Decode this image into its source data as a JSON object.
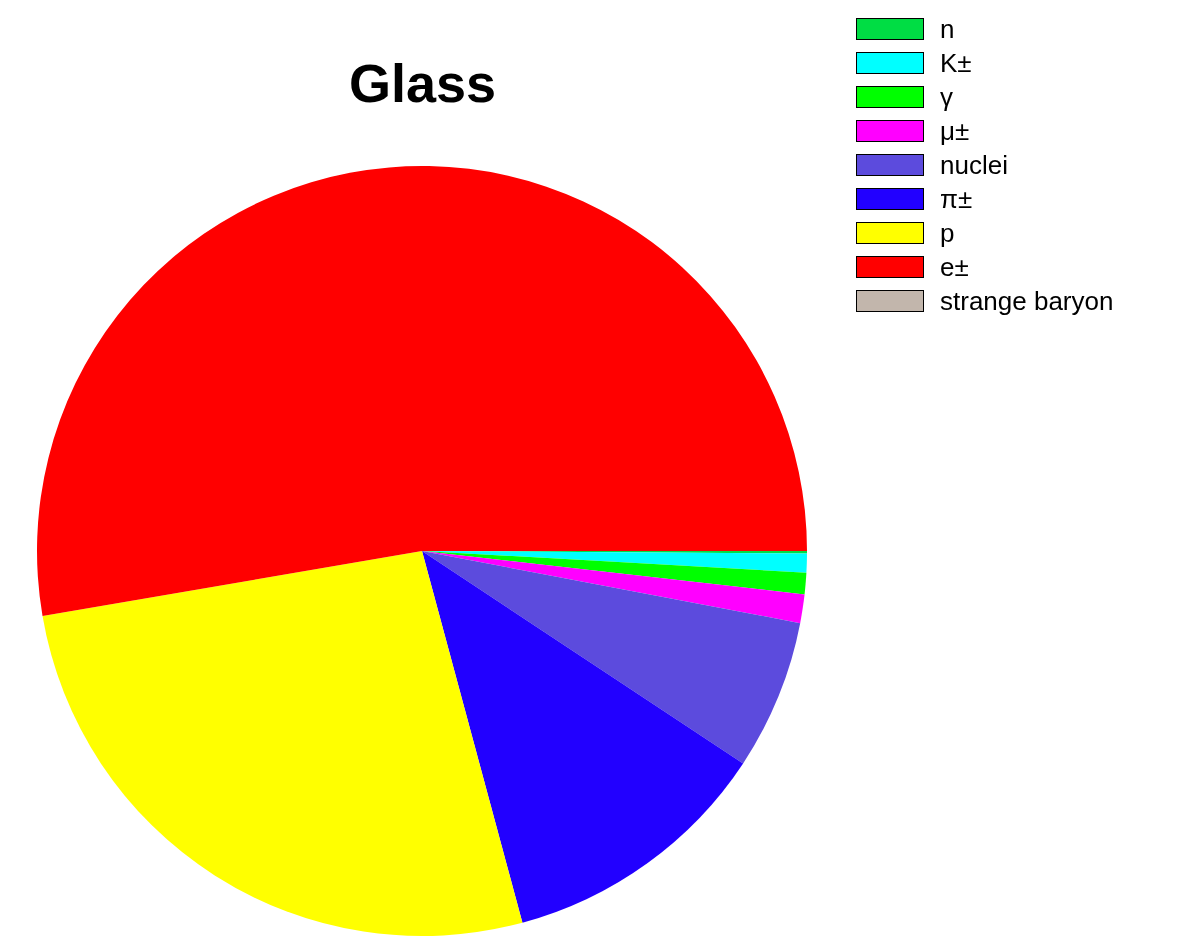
{
  "chart_data": {
    "type": "pie",
    "title": "Glass",
    "categories": [
      "n",
      "K±",
      "γ",
      "μ±",
      "nuclei",
      "π±",
      "p",
      "e±",
      "strange baryon"
    ],
    "values": [
      0.1,
      0.8,
      0.9,
      1.2,
      6.3,
      11.5,
      26.5,
      52.7,
      0
    ],
    "colors": [
      "#00dd44",
      "#00ffff",
      "#00ff00",
      "#ff00ff",
      "#5c4bdd",
      "#2200ff",
      "#ffff00",
      "#ff0000",
      "#c2b6ac"
    ],
    "legend": "top right"
  }
}
